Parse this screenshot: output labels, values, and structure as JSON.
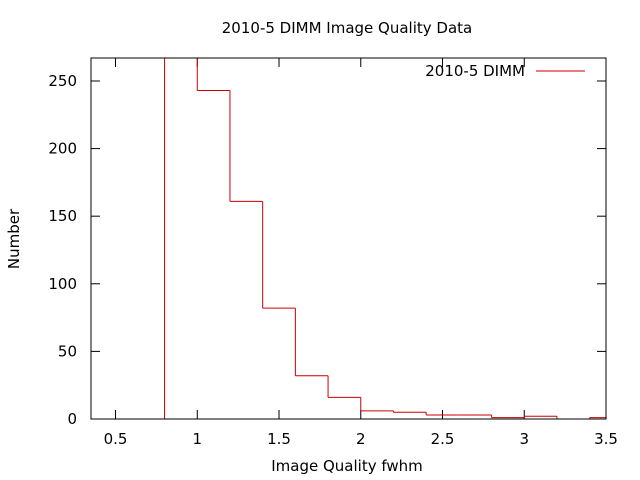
{
  "chart_data": {
    "type": "histogram",
    "title": "2010-5 DIMM Image Quality Data",
    "xlabel": "Image Quality fwhm",
    "ylabel": "Number",
    "xlim": [
      0.35,
      3.5
    ],
    "ylim": [
      0,
      267
    ],
    "xticks": [
      0.5,
      1,
      1.5,
      2,
      2.5,
      3,
      3.5
    ],
    "xtick_labels": [
      "0.5",
      "1",
      "1.5",
      "2",
      "2.5",
      "3",
      "3.5"
    ],
    "yticks": [
      0,
      50,
      100,
      150,
      200,
      250
    ],
    "ytick_labels": [
      "0",
      "50",
      "100",
      "150",
      "200",
      "250"
    ],
    "grid": false,
    "legend_position": "top-right",
    "series": [
      {
        "name": "2010-5 DIMM",
        "color": "#cc0000",
        "bins": [
          {
            "x0": 0.8,
            "x1": 1.0,
            "value": 267
          },
          {
            "x0": 1.0,
            "x1": 1.2,
            "value": 243
          },
          {
            "x0": 1.2,
            "x1": 1.4,
            "value": 161
          },
          {
            "x0": 1.4,
            "x1": 1.6,
            "value": 82
          },
          {
            "x0": 1.6,
            "x1": 1.8,
            "value": 32
          },
          {
            "x0": 1.8,
            "x1": 2.0,
            "value": 16
          },
          {
            "x0": 2.0,
            "x1": 2.2,
            "value": 6
          },
          {
            "x0": 2.2,
            "x1": 2.4,
            "value": 5
          },
          {
            "x0": 2.4,
            "x1": 2.6,
            "value": 3
          },
          {
            "x0": 2.6,
            "x1": 2.8,
            "value": 3
          },
          {
            "x0": 2.8,
            "x1": 3.0,
            "value": 1
          },
          {
            "x0": 3.0,
            "x1": 3.2,
            "value": 2
          },
          {
            "x0": 3.2,
            "x1": 3.4,
            "value": 0
          },
          {
            "x0": 3.4,
            "x1": 3.5,
            "value": 1
          }
        ]
      }
    ]
  }
}
